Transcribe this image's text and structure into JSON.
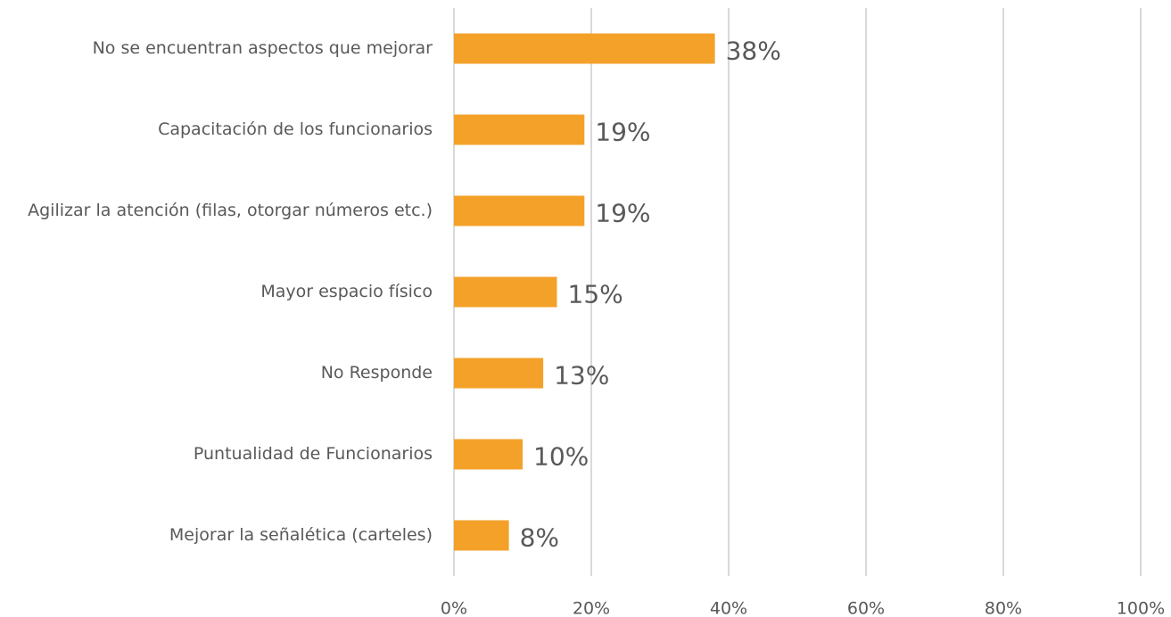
{
  "chart_data": {
    "type": "bar",
    "orientation": "horizontal",
    "categories": [
      "No se encuentran aspectos que mejorar",
      "Capacitación de los funcionarios",
      "Agilizar la atención (filas, otorgar números etc.)",
      "Mayor espacio físico",
      "No Responde",
      "Puntualidad de Funcionarios",
      "Mejorar la señalética (carteles)"
    ],
    "values": [
      38,
      19,
      19,
      15,
      13,
      10,
      8
    ],
    "value_labels": [
      "38%",
      "19%",
      "19%",
      "15%",
      "13%",
      "10%",
      "8%"
    ],
    "color": "#f4a12a",
    "xlim": [
      0,
      100
    ],
    "xticks": [
      {
        "value": 0,
        "label": "0%"
      },
      {
        "value": 20,
        "label": "20%"
      },
      {
        "value": 40,
        "label": "40%"
      },
      {
        "value": 60,
        "label": "60%"
      },
      {
        "value": 80,
        "label": "80%"
      },
      {
        "value": 100,
        "label": "100%"
      }
    ],
    "grid": true
  }
}
